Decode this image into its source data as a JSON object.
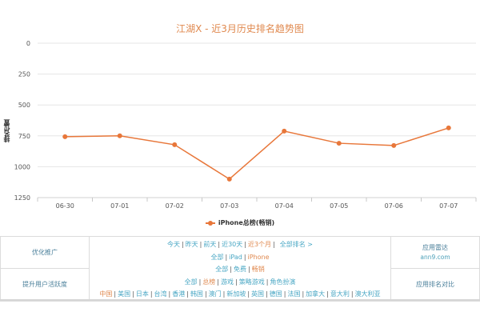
{
  "chart_title": "江湖X - 近3月历史排名趋势图",
  "y_axis_title": "排名位置",
  "legend_label": "iPhone总榜(畅销)",
  "colors": {
    "series": "#e8773a",
    "title": "#e0894f",
    "link": "#49a7c4",
    "active_link": "#e0894f",
    "grid": "#e6e6e6"
  },
  "chart_data": {
    "type": "line",
    "title": "江湖X - 近3月历史排名趋势图",
    "xlabel": "",
    "ylabel": "排名位置",
    "categories": [
      "06-30",
      "07-01",
      "07-02",
      "07-03",
      "07-04",
      "07-05",
      "07-06",
      "07-07"
    ],
    "series": [
      {
        "name": "iPhone总榜(畅销)",
        "values": [
          757,
          750,
          822,
          1100,
          712,
          810,
          828,
          686
        ]
      }
    ],
    "y_ticks": [
      0,
      250,
      500,
      750,
      1000,
      1250
    ],
    "ylim": [
      0,
      1250
    ],
    "y_reversed": true,
    "grid": true,
    "legend_position": "bottom"
  },
  "nav": {
    "left_top": "优化推广",
    "left_bottom": "提升用户活跃度",
    "right_top": "应用雷达",
    "right_top_sub": "ann9.com",
    "right_bottom": "应用排名对比",
    "time_links": [
      {
        "label": "今天",
        "active": false
      },
      {
        "label": "昨天",
        "active": false
      },
      {
        "label": "前天",
        "active": false
      },
      {
        "label": "近30天",
        "active": false
      },
      {
        "label": "近3个月",
        "active": true
      }
    ],
    "all_rank_link": "全部排名 >",
    "device_links": [
      {
        "label": "全部",
        "active": false
      },
      {
        "label": "iPad",
        "active": false
      },
      {
        "label": "iPhone",
        "active": true
      }
    ],
    "price_links": [
      {
        "label": "全部",
        "active": false
      },
      {
        "label": "免费",
        "active": false
      },
      {
        "label": "畅销",
        "active": true
      }
    ],
    "category_links": [
      {
        "label": "全部",
        "active": false
      },
      {
        "label": "总榜",
        "active": true
      },
      {
        "label": "游戏",
        "active": false
      },
      {
        "label": "策略游戏",
        "active": false
      },
      {
        "label": "角色扮演",
        "active": false
      }
    ],
    "country_links": [
      {
        "label": "中国",
        "active": true
      },
      {
        "label": "美国",
        "active": false
      },
      {
        "label": "日本",
        "active": false
      },
      {
        "label": "台湾",
        "active": false
      },
      {
        "label": "香港",
        "active": false
      },
      {
        "label": "韩国",
        "active": false
      },
      {
        "label": "澳门",
        "active": false
      },
      {
        "label": "新加坡",
        "active": false
      },
      {
        "label": "英国",
        "active": false
      },
      {
        "label": "德国",
        "active": false
      },
      {
        "label": "法国",
        "active": false
      },
      {
        "label": "加拿大",
        "active": false
      },
      {
        "label": "意大利",
        "active": false
      },
      {
        "label": "澳大利亚",
        "active": false
      }
    ]
  }
}
